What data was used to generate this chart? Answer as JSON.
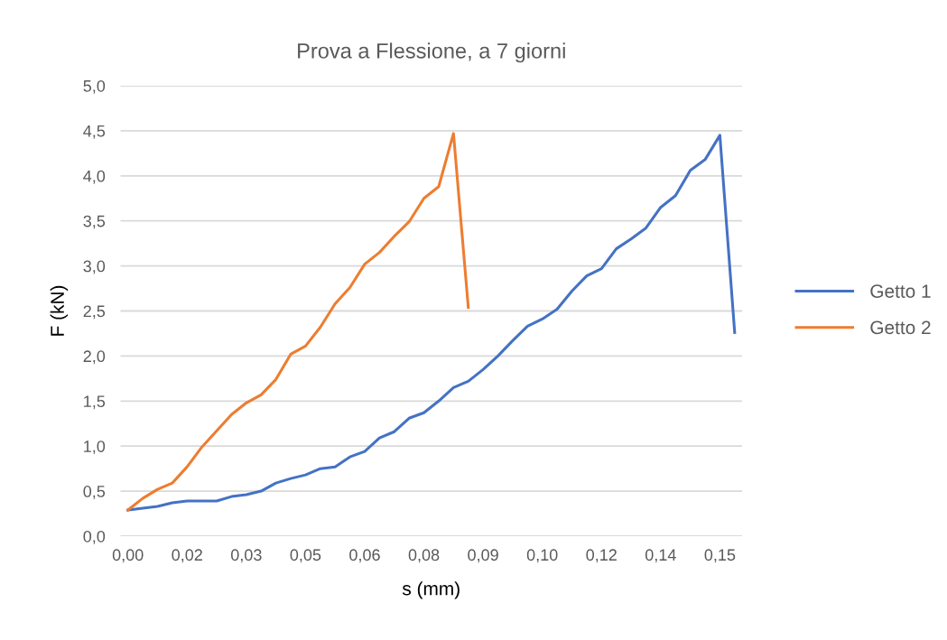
{
  "chart_data": {
    "type": "line",
    "title": "Prova a Flessione, a 7 giorni",
    "xlabel": "s (mm)",
    "ylabel": "F (kN)",
    "categories": [
      "0,00",
      null,
      null,
      null,
      "0,02",
      null,
      null,
      null,
      "0,03",
      null,
      null,
      null,
      "0,05",
      null,
      null,
      null,
      "0,06",
      null,
      null,
      null,
      "0,08",
      null,
      null,
      null,
      "0,09",
      null,
      null,
      null,
      "0,10",
      null,
      null,
      null,
      "0,12",
      null,
      null,
      null,
      "0,14",
      null,
      null,
      null,
      "0,15",
      null
    ],
    "series": [
      {
        "name": "Getto 1",
        "color": "#4472c4",
        "values": [
          0.29,
          0.31,
          0.33,
          0.37,
          0.39,
          0.39,
          0.39,
          0.44,
          0.46,
          0.5,
          0.59,
          0.64,
          0.68,
          0.75,
          0.77,
          0.88,
          0.94,
          1.09,
          1.16,
          1.31,
          1.37,
          1.5,
          1.65,
          1.72,
          1.85,
          2.0,
          2.17,
          2.33,
          2.41,
          2.52,
          2.72,
          2.89,
          2.97,
          3.19,
          3.3,
          3.42,
          3.65,
          3.78,
          4.06,
          4.18,
          4.45,
          2.26
        ]
      },
      {
        "name": "Getto 2",
        "color": "#ed7d31",
        "values": [
          0.29,
          0.42,
          0.52,
          0.59,
          0.77,
          0.99,
          1.17,
          1.35,
          1.48,
          1.57,
          1.74,
          2.02,
          2.11,
          2.32,
          2.58,
          2.76,
          3.02,
          3.15,
          3.33,
          3.49,
          3.75,
          3.88,
          4.47,
          2.54,
          null,
          null,
          null,
          null,
          null,
          null,
          null,
          null,
          null,
          null,
          null,
          null,
          null,
          null,
          null,
          null,
          null,
          null
        ]
      }
    ],
    "ylim": [
      0,
      5
    ],
    "yticks": [
      {
        "value": 0,
        "label": "0,0"
      },
      {
        "value": 0.5,
        "label": "0,5"
      },
      {
        "value": 1,
        "label": "1,0"
      },
      {
        "value": 1.5,
        "label": "1,5"
      },
      {
        "value": 2,
        "label": "2,0"
      },
      {
        "value": 2.5,
        "label": "2,5"
      },
      {
        "value": 3,
        "label": "3,0"
      },
      {
        "value": 3.5,
        "label": "3,5"
      },
      {
        "value": 4,
        "label": "4,0"
      },
      {
        "value": 4.5,
        "label": "4,5"
      },
      {
        "value": 5,
        "label": "5,0"
      }
    ],
    "grid": "y",
    "legend": "right",
    "marker": "none",
    "line_style": "solid"
  }
}
